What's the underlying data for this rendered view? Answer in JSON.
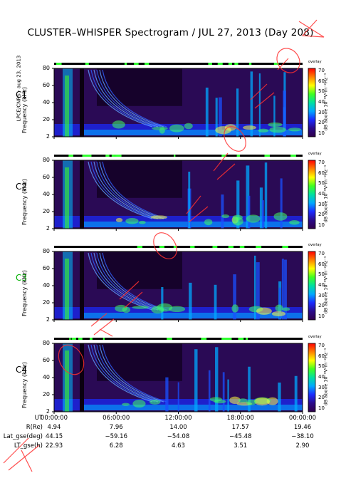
{
  "title": "CLUSTER–WHISPER Spectrogram / JUL 27, 2013 (Day 208)",
  "side_label": "LPCE/CNRS - aug 23, 2013",
  "ylabel": "Frequency (kHz)",
  "colorbar_label": "dB above 10⁻⁸V²m⁻²Hz⁻¹",
  "colorbar_top": "overlay",
  "colors": {
    "scale": [
      "#30004a",
      "#2a0a8a",
      "#1a2aff",
      "#00a8ff",
      "#00e0a0",
      "#40ff20",
      "#ffff00",
      "#ff8000",
      "#ff0000"
    ],
    "c3_label": "#00c000",
    "stamp": "#ff2020"
  },
  "panels": [
    {
      "name": "C1",
      "color": "#000000"
    },
    {
      "name": "C2",
      "color": "#000000"
    },
    {
      "name": "C3",
      "color": "#00b000"
    },
    {
      "name": "C4",
      "color": "#000000"
    }
  ],
  "chart_data": {
    "type": "heatmap",
    "title": "CLUSTER–WHISPER Spectrogram / JUL 27, 2013 (Day 208)",
    "xlabel": "UT",
    "ylabel": "Frequency (kHz)",
    "ylim": [
      2,
      80
    ],
    "yticks": [
      "80",
      "60",
      "40",
      "20",
      "2"
    ],
    "xticks": [
      "00:00:00",
      "06:00:00",
      "12:00:00",
      "18:00:00",
      "00:00:00"
    ],
    "colorbar": {
      "label": "dB above 10⁻⁸V²m⁻²Hz⁻¹",
      "range": [
        10,
        70
      ],
      "ticks": [
        "70",
        "60",
        "50",
        "40",
        "30",
        "20",
        "10"
      ]
    },
    "series": [
      {
        "name": "C1"
      },
      {
        "name": "C2"
      },
      {
        "name": "C3"
      },
      {
        "name": "C4"
      }
    ]
  },
  "ephemeris": {
    "rows": [
      {
        "label": "UT",
        "values": [
          "00:00:00",
          "06:00:00",
          "12:00:00",
          "18:00:00",
          "00:00:00"
        ]
      },
      {
        "label": "R(Re)",
        "values": [
          "4.94",
          "7.96",
          "14.00",
          "17.57",
          "19.46"
        ]
      },
      {
        "label": "Lat_gse(deg)",
        "values": [
          "44.15",
          "−59.16",
          "−54.08",
          "−45.48",
          "−38.10"
        ]
      },
      {
        "label": "LT_gse(h)",
        "values": [
          "22.93",
          "6.28",
          "4.63",
          "3.51",
          "2.90"
        ]
      }
    ]
  }
}
